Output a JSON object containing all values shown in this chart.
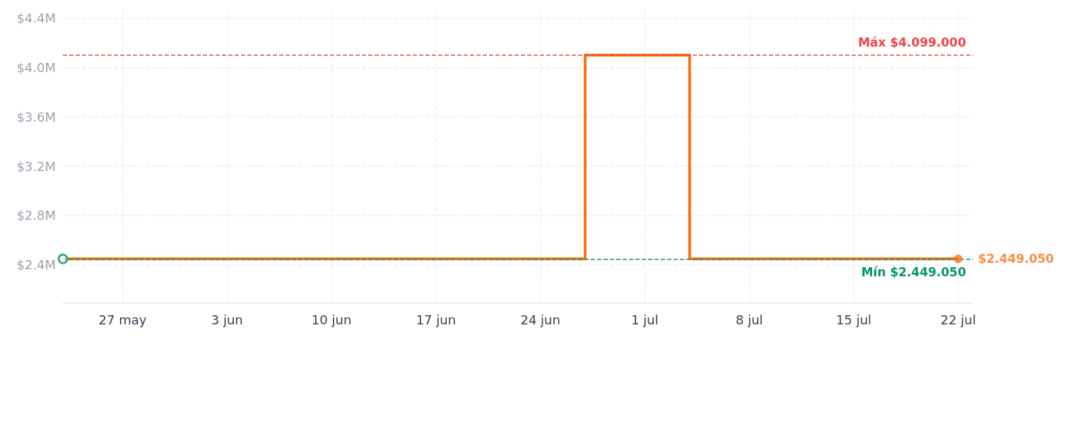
{
  "chart_data": {
    "type": "step",
    "xlim": [
      "--05-23",
      "--07-23"
    ],
    "xticks": [
      {
        "value": "--05-27",
        "label": "27 may"
      },
      {
        "value": "--06-03",
        "label": "3 jun"
      },
      {
        "value": "--06-10",
        "label": "10 jun"
      },
      {
        "value": "--06-17",
        "label": "17 jun"
      },
      {
        "value": "--06-24",
        "label": "24 jun"
      },
      {
        "value": "--07-01",
        "label": "1 jul"
      },
      {
        "value": "--07-08",
        "label": "8 jul"
      },
      {
        "value": "--07-15",
        "label": "15 jul"
      },
      {
        "value": "--07-22",
        "label": "22 jul"
      }
    ],
    "ylim": [
      2090000,
      4460000
    ],
    "yticks": [
      {
        "value": 2400000,
        "label": "$2.4M"
      },
      {
        "value": 2800000,
        "label": "$2.8M"
      },
      {
        "value": 3200000,
        "label": "$3.2M"
      },
      {
        "value": 3600000,
        "label": "$3.6M"
      },
      {
        "value": 4000000,
        "label": "$4.0M"
      },
      {
        "value": 4400000,
        "label": "$4.4M"
      }
    ],
    "grid": true,
    "series": [
      {
        "color": "#f97316",
        "x": [
          "--05-23",
          "--06-27",
          "--07-04",
          "--07-22"
        ],
        "values": [
          2449050,
          4099000,
          2449050,
          2449050
        ]
      },
      {
        "type": "scatter",
        "color": "#059669",
        "marker": "circle",
        "x": [
          "--05-23"
        ],
        "values": [
          2449050
        ]
      },
      {
        "type": "scatter",
        "color": "#f97316",
        "marker": "circle",
        "x": [
          "--07-22"
        ],
        "values": [
          2449050
        ],
        "value_labels": [
          "$2.449.050"
        ]
      }
    ],
    "ref_lines": [
      {
        "axis": "y",
        "value": 4099000,
        "label": "Máx $4.099.000",
        "color": "#ef4444",
        "line_style": "dashed"
      },
      {
        "axis": "y",
        "value": 2449050,
        "label": "Mín $2.449.050",
        "color": "#059669",
        "line_style": "dashed"
      }
    ]
  }
}
